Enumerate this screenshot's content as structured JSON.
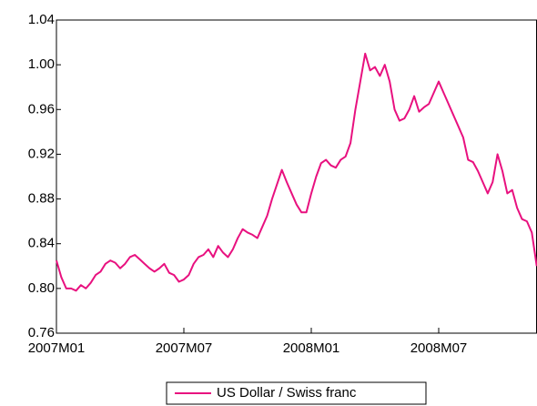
{
  "chart_data": {
    "type": "line",
    "categories": [
      "2007M01",
      null,
      null,
      null,
      null,
      null,
      null,
      null,
      null,
      null,
      null,
      null,
      null,
      null,
      null,
      null,
      null,
      null,
      null,
      null,
      null,
      null,
      null,
      null,
      null,
      null,
      "2007M07",
      null,
      null,
      null,
      null,
      null,
      null,
      null,
      null,
      null,
      null,
      null,
      null,
      null,
      null,
      null,
      null,
      null,
      null,
      null,
      null,
      null,
      null,
      null,
      null,
      null,
      "2008M01",
      null,
      null,
      null,
      null,
      null,
      null,
      null,
      null,
      null,
      null,
      null,
      null,
      null,
      null,
      null,
      null,
      null,
      null,
      null,
      null,
      null,
      null,
      null,
      null,
      null,
      "2008M07",
      null,
      null,
      null,
      null,
      null,
      null,
      null,
      null,
      null,
      null,
      null,
      null,
      null,
      null,
      null,
      null,
      null,
      null,
      null,
      null
    ],
    "series": [
      {
        "name": "US Dollar / Swiss franc",
        "color": "#e8117f",
        "values": [
          0.825,
          0.81,
          0.8,
          0.8,
          0.798,
          0.803,
          0.8,
          0.805,
          0.812,
          0.815,
          0.822,
          0.825,
          0.823,
          0.818,
          0.822,
          0.828,
          0.83,
          0.826,
          0.822,
          0.818,
          0.815,
          0.818,
          0.822,
          0.814,
          0.812,
          0.806,
          0.808,
          0.812,
          0.822,
          0.828,
          0.83,
          0.835,
          0.828,
          0.838,
          0.832,
          0.828,
          0.835,
          0.845,
          0.853,
          0.85,
          0.848,
          0.845,
          0.855,
          0.865,
          0.88,
          0.893,
          0.906,
          0.895,
          0.885,
          0.875,
          0.868,
          0.868,
          0.885,
          0.9,
          0.912,
          0.915,
          0.91,
          0.908,
          0.915,
          0.918,
          0.93,
          0.96,
          0.985,
          1.01,
          0.995,
          0.998,
          0.99,
          1.0,
          0.985,
          0.96,
          0.95,
          0.952,
          0.96,
          0.972,
          0.958,
          0.962,
          0.965,
          0.975,
          0.985,
          0.975,
          0.965,
          0.955,
          0.945,
          0.935,
          0.915,
          0.913,
          0.905,
          0.895,
          0.885,
          0.895,
          0.92,
          0.905,
          0.885,
          0.888,
          0.872,
          0.862,
          0.86,
          0.85,
          0.82
        ]
      }
    ],
    "ylim": [
      0.76,
      1.04
    ],
    "yticks": [
      0.76,
      {
        "value": 0.8,
        "label": "0.80"
      },
      0.84,
      0.88,
      0.92,
      0.96,
      {
        "value": 1.0,
        "label": "1.00"
      },
      1.04
    ],
    "grid": false,
    "legend": "bottom"
  }
}
